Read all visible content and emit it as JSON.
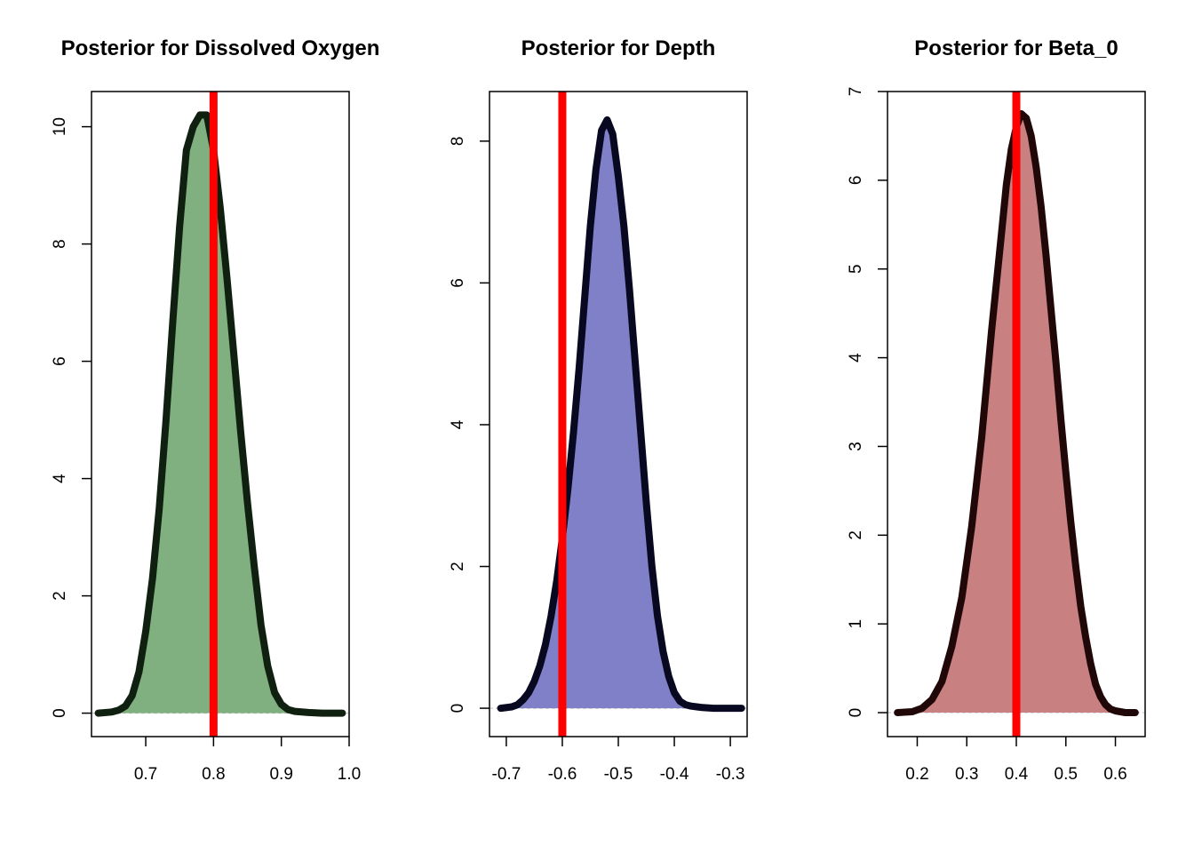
{
  "chart_data": [
    {
      "type": "area",
      "title": "Posterior for Dissolved Oxygen",
      "xlabel": "",
      "ylabel": "",
      "xlim": [
        0.62,
        1.0
      ],
      "ylim": [
        -0.4,
        10.6
      ],
      "xticks": [
        0.7,
        0.8,
        0.9,
        1.0
      ],
      "xtick_labels": [
        "0.7",
        "0.8",
        "0.9",
        "1.0"
      ],
      "yticks": [
        0,
        2,
        4,
        6,
        8,
        10
      ],
      "ytick_labels": [
        "0",
        "2",
        "4",
        "6",
        "8",
        "10"
      ],
      "reference_line": 0.8,
      "fill_color": "#80b080",
      "edge_color": "#102010",
      "reference_color": "#ff0000",
      "grid": false,
      "legend": "none",
      "x": [
        0.63,
        0.65,
        0.66,
        0.67,
        0.68,
        0.69,
        0.7,
        0.71,
        0.72,
        0.73,
        0.74,
        0.75,
        0.76,
        0.77,
        0.78,
        0.79,
        0.8,
        0.81,
        0.82,
        0.83,
        0.84,
        0.85,
        0.86,
        0.87,
        0.88,
        0.89,
        0.9,
        0.91,
        0.92,
        0.94,
        0.96,
        0.98,
        0.99
      ],
      "y": [
        0.0,
        0.02,
        0.05,
        0.12,
        0.3,
        0.7,
        1.4,
        2.3,
        3.5,
        5.0,
        6.7,
        8.3,
        9.6,
        10.0,
        10.2,
        10.2,
        9.6,
        8.6,
        7.4,
        6.1,
        4.8,
        3.6,
        2.5,
        1.5,
        0.8,
        0.35,
        0.15,
        0.06,
        0.03,
        0.01,
        0.0,
        0.0,
        0.0
      ]
    },
    {
      "type": "area",
      "title": "Posterior for Depth",
      "xlabel": "",
      "ylabel": "",
      "xlim": [
        -0.73,
        -0.27
      ],
      "ylim": [
        -0.4,
        8.7
      ],
      "xticks": [
        -0.7,
        -0.6,
        -0.5,
        -0.4,
        -0.3
      ],
      "xtick_labels": [
        "-0.7",
        "-0.6",
        "-0.5",
        "-0.4",
        "-0.3"
      ],
      "yticks": [
        0,
        2,
        4,
        6,
        8
      ],
      "ytick_labels": [
        "0",
        "2",
        "4",
        "6",
        "8"
      ],
      "reference_line": -0.6,
      "fill_color": "#8080c8",
      "edge_color": "#080820",
      "reference_color": "#ff0000",
      "grid": false,
      "legend": "none",
      "x": [
        -0.71,
        -0.69,
        -0.68,
        -0.67,
        -0.66,
        -0.65,
        -0.64,
        -0.63,
        -0.62,
        -0.61,
        -0.6,
        -0.59,
        -0.58,
        -0.57,
        -0.56,
        -0.55,
        -0.54,
        -0.53,
        -0.52,
        -0.51,
        -0.5,
        -0.49,
        -0.48,
        -0.47,
        -0.46,
        -0.45,
        -0.44,
        -0.43,
        -0.42,
        -0.41,
        -0.4,
        -0.39,
        -0.38,
        -0.37,
        -0.36,
        -0.35,
        -0.33,
        -0.31,
        -0.28
      ],
      "y": [
        0.0,
        0.02,
        0.05,
        0.12,
        0.22,
        0.38,
        0.6,
        0.9,
        1.3,
        1.8,
        2.4,
        3.1,
        3.9,
        4.8,
        5.8,
        6.8,
        7.6,
        8.15,
        8.3,
        8.1,
        7.5,
        6.8,
        5.9,
        4.9,
        3.9,
        2.9,
        2.0,
        1.3,
        0.8,
        0.45,
        0.22,
        0.1,
        0.05,
        0.03,
        0.02,
        0.01,
        0.0,
        0.0,
        0.0
      ]
    },
    {
      "type": "area",
      "title": "Posterior for Beta_0",
      "xlabel": "",
      "ylabel": "",
      "xlim": [
        0.14,
        0.66
      ],
      "ylim": [
        -0.27,
        7.0
      ],
      "xticks": [
        0.2,
        0.3,
        0.4,
        0.5,
        0.6
      ],
      "xtick_labels": [
        "0.2",
        "0.3",
        "0.4",
        "0.5",
        "0.6"
      ],
      "yticks": [
        0,
        1,
        2,
        3,
        4,
        5,
        6,
        7
      ],
      "ytick_labels": [
        "0",
        "1",
        "2",
        "3",
        "4",
        "5",
        "6",
        "7"
      ],
      "reference_line": 0.4,
      "fill_color": "#c88080",
      "edge_color": "#200808",
      "reference_color": "#ff0000",
      "grid": false,
      "legend": "none",
      "x": [
        0.16,
        0.19,
        0.21,
        0.23,
        0.25,
        0.27,
        0.29,
        0.31,
        0.33,
        0.35,
        0.37,
        0.38,
        0.39,
        0.4,
        0.41,
        0.42,
        0.43,
        0.44,
        0.45,
        0.46,
        0.47,
        0.48,
        0.49,
        0.5,
        0.51,
        0.52,
        0.53,
        0.54,
        0.55,
        0.56,
        0.57,
        0.58,
        0.59,
        0.6,
        0.62,
        0.64
      ],
      "y": [
        0.0,
        0.01,
        0.05,
        0.15,
        0.35,
        0.75,
        1.3,
        2.1,
        3.1,
        4.3,
        5.4,
        5.95,
        6.35,
        6.6,
        6.75,
        6.7,
        6.5,
        6.15,
        5.7,
        5.15,
        4.55,
        3.95,
        3.3,
        2.7,
        2.15,
        1.65,
        1.2,
        0.85,
        0.55,
        0.32,
        0.18,
        0.09,
        0.04,
        0.02,
        0.0,
        0.0
      ]
    }
  ]
}
